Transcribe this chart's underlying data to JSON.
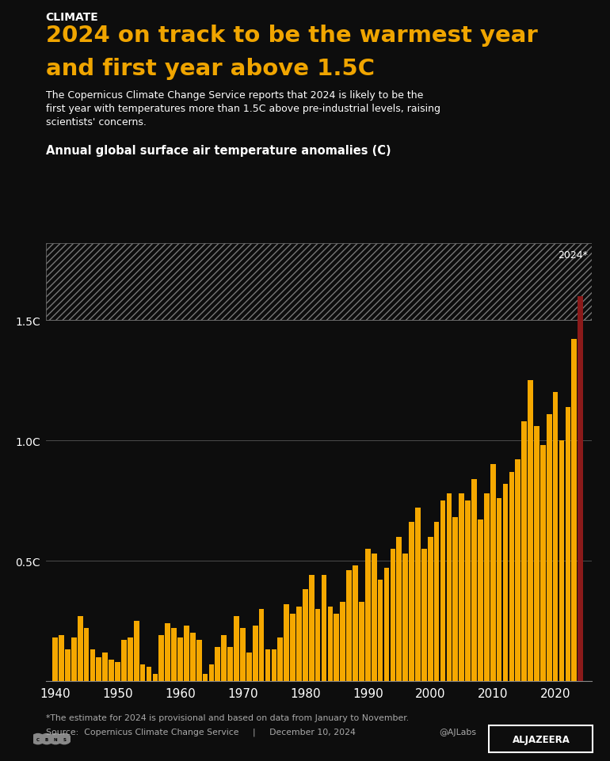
{
  "background_color": "#0d0d0d",
  "title_label": "CLIMATE",
  "title_main_line1": "2024 on track to be the warmest year",
  "title_main_line2": "and first year above 1.5C",
  "title_color": "#f0a500",
  "label_color": "#ffffff",
  "subtitle_line1": "The Copernicus Climate Change Service reports that 2024 is likely to be the",
  "subtitle_line2": "first year with temperatures more than 1.5C above pre-industrial levels, raising",
  "subtitle_line3": "scientists' concerns.",
  "chart_title": "Annual global surface air temperature anomalies (C)",
  "footnote": "*The estimate for 2024 is provisional and based on data from January to November.",
  "source": "Source:  Copernicus Climate Change Service     |     December 10, 2024",
  "credit": "@AJLabs",
  "bar_color": "#f5a800",
  "bar_2024_color": "#8b1a1a",
  "grid_color": "#555555",
  "spine_color": "#888888",
  "years": [
    1940,
    1941,
    1942,
    1943,
    1944,
    1945,
    1946,
    1947,
    1948,
    1949,
    1950,
    1951,
    1952,
    1953,
    1954,
    1955,
    1956,
    1957,
    1958,
    1959,
    1960,
    1961,
    1962,
    1963,
    1964,
    1965,
    1966,
    1967,
    1968,
    1969,
    1970,
    1971,
    1972,
    1973,
    1974,
    1975,
    1976,
    1977,
    1978,
    1979,
    1980,
    1981,
    1982,
    1983,
    1984,
    1985,
    1986,
    1987,
    1988,
    1989,
    1990,
    1991,
    1992,
    1993,
    1994,
    1995,
    1996,
    1997,
    1998,
    1999,
    2000,
    2001,
    2002,
    2003,
    2004,
    2005,
    2006,
    2007,
    2008,
    2009,
    2010,
    2011,
    2012,
    2013,
    2014,
    2015,
    2016,
    2017,
    2018,
    2019,
    2020,
    2021,
    2022,
    2023,
    2024
  ],
  "values": [
    0.18,
    0.19,
    0.13,
    0.18,
    0.27,
    0.22,
    0.13,
    0.1,
    0.12,
    0.09,
    0.08,
    0.17,
    0.18,
    0.25,
    0.07,
    0.06,
    0.03,
    0.19,
    0.24,
    0.22,
    0.18,
    0.23,
    0.2,
    0.17,
    0.03,
    0.07,
    0.14,
    0.19,
    0.14,
    0.27,
    0.22,
    0.12,
    0.23,
    0.3,
    0.13,
    0.13,
    0.18,
    0.32,
    0.28,
    0.31,
    0.38,
    0.44,
    0.3,
    0.44,
    0.31,
    0.28,
    0.33,
    0.46,
    0.48,
    0.33,
    0.55,
    0.53,
    0.42,
    0.47,
    0.55,
    0.6,
    0.53,
    0.66,
    0.72,
    0.55,
    0.6,
    0.66,
    0.75,
    0.78,
    0.68,
    0.78,
    0.75,
    0.84,
    0.67,
    0.78,
    0.9,
    0.76,
    0.82,
    0.87,
    0.92,
    1.08,
    1.25,
    1.06,
    0.98,
    1.11,
    1.2,
    1.0,
    1.14,
    1.42,
    1.6
  ],
  "ylim_max": 1.82,
  "hatch_top": 1.82,
  "threshold": 1.5,
  "xtick_years": [
    1940,
    1950,
    1960,
    1970,
    1980,
    1990,
    2000,
    2010,
    2020
  ],
  "ytick_vals": [
    0.5,
    1.0,
    1.5
  ],
  "ytick_labels": [
    "0.5C",
    "1.0C",
    "1.5C"
  ]
}
